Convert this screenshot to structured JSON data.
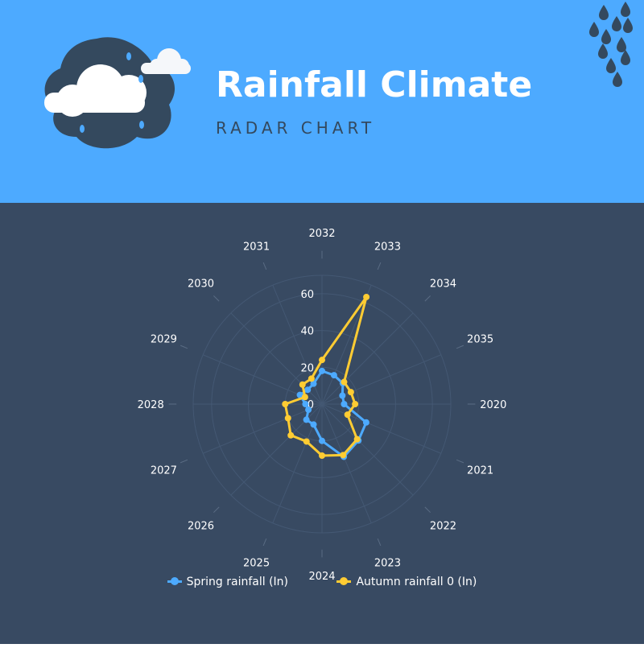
{
  "header": {
    "title": "Rainfall Climate",
    "subtitle": "RADAR CHART"
  },
  "colors": {
    "header_bg": "#4daaff",
    "body_bg": "#384a62",
    "spring": "#4daaff",
    "autumn": "#ffcc33"
  },
  "chart_data": {
    "type": "radar",
    "title": "",
    "categories": [
      "2032",
      "2033",
      "2034",
      "2035",
      "2020",
      "2021",
      "2022",
      "2023",
      "2024",
      "2025",
      "2026",
      "2027",
      "2028",
      "2029",
      "2030",
      "2031"
    ],
    "radial_ticks": [
      "0",
      "20",
      "40",
      "60"
    ],
    "rmax": 70,
    "grid": true,
    "legend_position": "bottom",
    "series": [
      {
        "name": "Spring rainfall (In)",
        "color": "#4daaff",
        "values": [
          18,
          17,
          16,
          12,
          12,
          26,
          28,
          31,
          20,
          12,
          12,
          8,
          9,
          13,
          11,
          12
        ]
      },
      {
        "name": "Autumn rainfall 0 (In)",
        "color": "#ffcc33",
        "values": [
          24,
          63,
          17,
          17,
          18,
          15,
          27,
          30,
          28,
          22,
          24,
          20,
          20,
          10,
          15,
          15
        ]
      }
    ]
  }
}
